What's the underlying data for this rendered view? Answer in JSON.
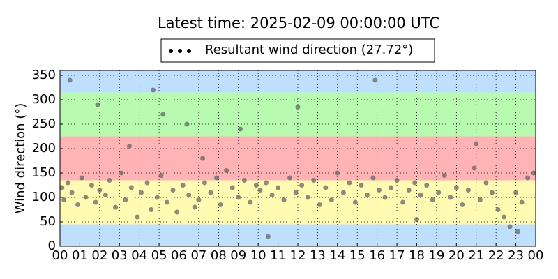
{
  "chart_data": {
    "type": "scatter",
    "title": "Latest time: 2025-02-09 00:00:00 UTC",
    "y_label": "Wind direction (°)",
    "xlim": [
      0,
      24
    ],
    "ylim": [
      0,
      360
    ],
    "xticks": [
      {
        "value": 0,
        "label": "00"
      },
      {
        "value": 1,
        "label": "01"
      },
      {
        "value": 2,
        "label": "02"
      },
      {
        "value": 3,
        "label": "03"
      },
      {
        "value": 4,
        "label": "04"
      },
      {
        "value": 5,
        "label": "05"
      },
      {
        "value": 6,
        "label": "06"
      },
      {
        "value": 7,
        "label": "07"
      },
      {
        "value": 8,
        "label": "08"
      },
      {
        "value": 9,
        "label": "09"
      },
      {
        "value": 10,
        "label": "10"
      },
      {
        "value": 11,
        "label": "11"
      },
      {
        "value": 12,
        "label": "12"
      },
      {
        "value": 13,
        "label": "13"
      },
      {
        "value": 14,
        "label": "14"
      },
      {
        "value": 15,
        "label": "15"
      },
      {
        "value": 16,
        "label": "16"
      },
      {
        "value": 17,
        "label": "17"
      },
      {
        "value": 18,
        "label": "18"
      },
      {
        "value": 19,
        "label": "19"
      },
      {
        "value": 20,
        "label": "20"
      },
      {
        "value": 21,
        "label": "21"
      },
      {
        "value": 22,
        "label": "22"
      },
      {
        "value": 23,
        "label": "23"
      },
      {
        "value": 24,
        "label": "00"
      }
    ],
    "yticks": [
      0,
      50,
      100,
      150,
      200,
      250,
      300,
      350
    ],
    "grid": true,
    "bands": [
      {
        "from": 0,
        "to": 45,
        "color": "#bfdfff"
      },
      {
        "from": 45,
        "to": 135,
        "color": "#fffbb3"
      },
      {
        "from": 135,
        "to": 225,
        "color": "#ffb3b5"
      },
      {
        "from": 225,
        "to": 315,
        "color": "#b8fbb0"
      },
      {
        "from": 315,
        "to": 360,
        "color": "#bfdfff"
      }
    ],
    "series": [
      {
        "name": "Resultant wind direction (27.72°)",
        "color": "#666666",
        "legend_color": "#000000",
        "x": [
          0.1,
          0.2,
          0.4,
          0.6,
          0.9,
          1.1,
          1.3,
          1.6,
          1.8,
          2.0,
          2.3,
          2.5,
          2.8,
          3.1,
          3.3,
          3.6,
          3.9,
          4.1,
          4.4,
          4.6,
          4.9,
          5.1,
          5.4,
          5.7,
          5.9,
          6.2,
          6.5,
          6.8,
          7.0,
          7.3,
          7.6,
          7.9,
          8.1,
          8.4,
          8.7,
          9.0,
          9.3,
          9.6,
          9.9,
          10.1,
          10.4,
          10.7,
          11.0,
          11.3,
          11.6,
          11.9,
          12.2,
          12.5,
          12.8,
          13.1,
          13.4,
          13.7,
          14.0,
          14.3,
          14.6,
          14.9,
          15.2,
          15.5,
          15.8,
          16.1,
          16.4,
          16.7,
          17.0,
          17.3,
          17.6,
          17.9,
          18.2,
          18.5,
          18.8,
          19.1,
          19.4,
          19.7,
          20.0,
          20.3,
          20.6,
          20.9,
          21.2,
          21.5,
          21.8,
          22.1,
          22.4,
          22.7,
          23.0,
          23.3,
          23.6,
          23.9,
          0.5,
          1.9,
          3.5,
          4.7,
          5.2,
          6.4,
          7.2,
          9.1,
          10.5,
          12.0,
          15.9,
          18.0,
          21.0,
          23.1
        ],
        "values": [
          120,
          95,
          130,
          110,
          85,
          140,
          100,
          125,
          90,
          115,
          105,
          135,
          80,
          150,
          95,
          120,
          60,
          110,
          130,
          75,
          100,
          145,
          90,
          115,
          70,
          125,
          105,
          80,
          95,
          130,
          110,
          140,
          85,
          155,
          120,
          100,
          135,
          90,
          125,
          115,
          130,
          105,
          120,
          95,
          140,
          110,
          125,
          100,
          135,
          85,
          120,
          95,
          150,
          110,
          130,
          90,
          125,
          105,
          140,
          115,
          100,
          120,
          135,
          90,
          115,
          130,
          105,
          125,
          95,
          110,
          145,
          100,
          120,
          85,
          115,
          160,
          95,
          130,
          110,
          75,
          60,
          40,
          110,
          90,
          140,
          150,
          340,
          290,
          205,
          320,
          270,
          250,
          180,
          240,
          20,
          285,
          340,
          55,
          210,
          30
        ]
      }
    ]
  }
}
